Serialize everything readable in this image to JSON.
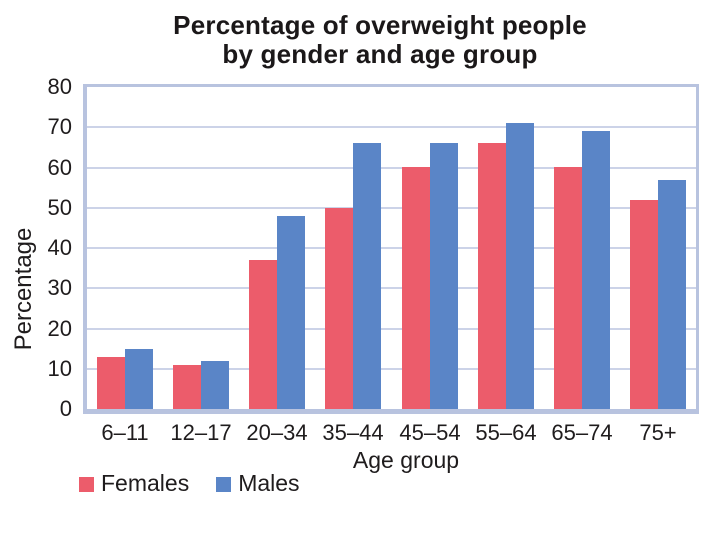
{
  "chart_data": {
    "type": "bar",
    "title": "Percentage of overweight people by gender and age group",
    "title_lines": [
      "Percentage of overweight people",
      "by gender and age group"
    ],
    "categories": [
      "6–11",
      "12–17",
      "20–34",
      "35–44",
      "45–54",
      "55–64",
      "65–74",
      "75+"
    ],
    "series": [
      {
        "name": "Females",
        "color": "#ec5c6b",
        "values": [
          13,
          11,
          37,
          50,
          60,
          66,
          60,
          52
        ]
      },
      {
        "name": "Males",
        "color": "#5a85c7",
        "values": [
          15,
          12,
          48,
          66,
          66,
          71,
          69,
          57
        ]
      }
    ],
    "xlabel": "Age group",
    "ylabel": "Percentage",
    "ylim": [
      0,
      80
    ],
    "ytick_step": 10,
    "grid": true,
    "gridline_color": "#ccd3e8",
    "frame_color": "#b8c3df",
    "legend_position": "bottom-left"
  }
}
